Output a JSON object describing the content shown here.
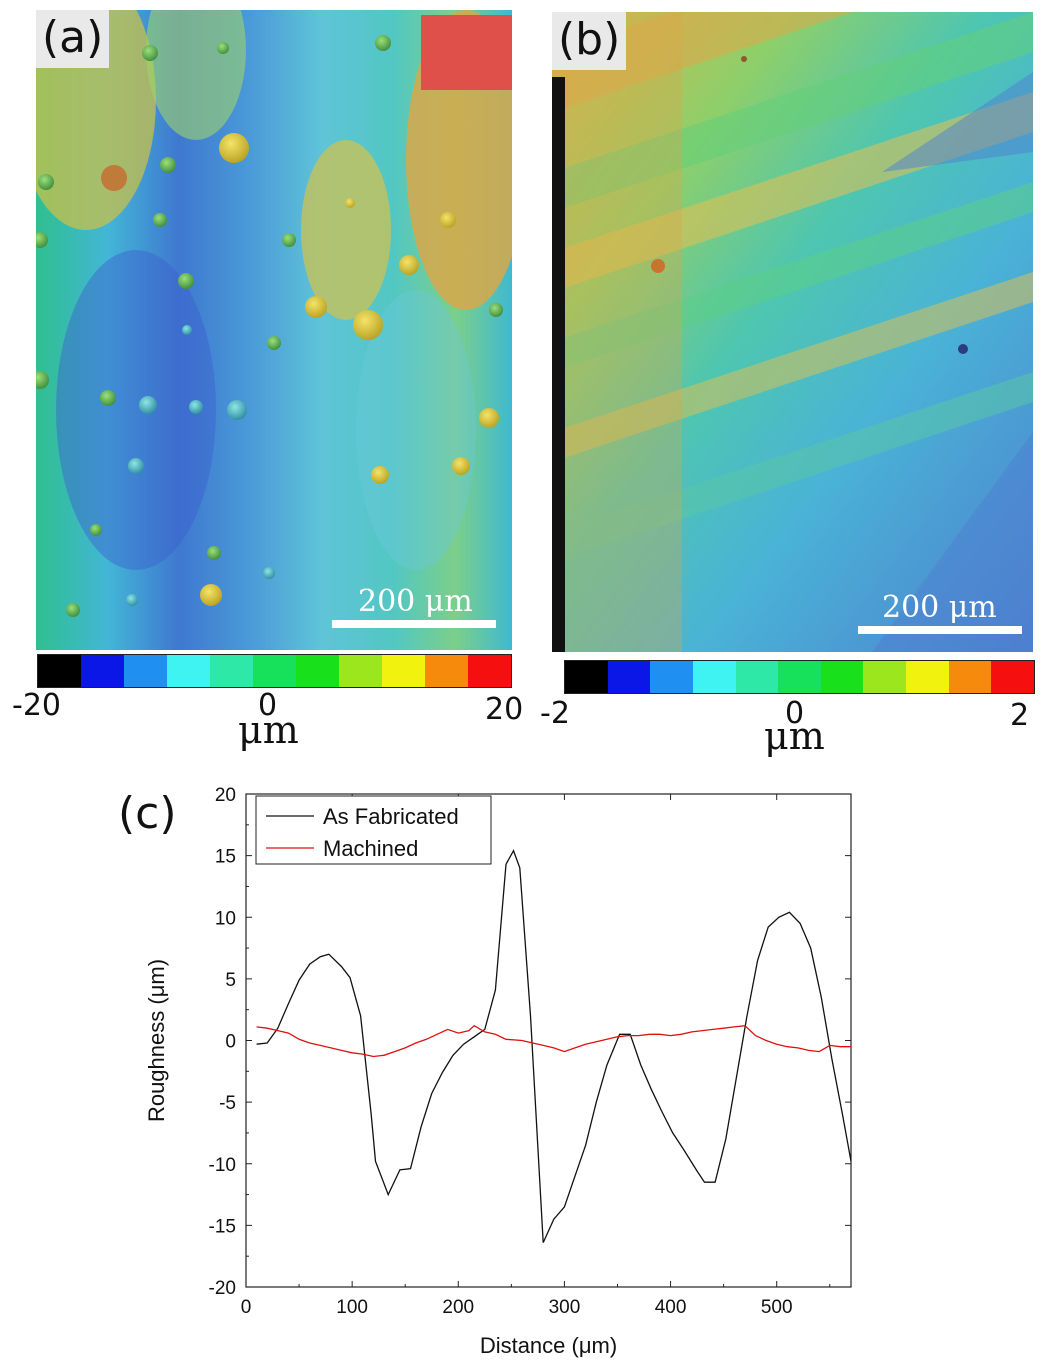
{
  "panel_a": {
    "tag": "(a)",
    "scalebar_label": "200 μm",
    "colorbar": {
      "min_label": "-20",
      "mid_label": "0",
      "max_label": "20",
      "unit": "μm",
      "colors": [
        "#000000",
        "#0b17e6",
        "#1f8ff2",
        "#3ef3f2",
        "#2ee8a8",
        "#17e05a",
        "#18e01a",
        "#9be61c",
        "#f2f20f",
        "#f58a0c",
        "#f50f0f"
      ]
    }
  },
  "panel_b": {
    "tag": "(b)",
    "scalebar_label": "200 μm",
    "colorbar": {
      "min_label": "-2",
      "mid_label": "0",
      "max_label": "2",
      "unit": "μm",
      "colors": [
        "#000000",
        "#0b17e6",
        "#1f8ff2",
        "#3ef3f2",
        "#2ee8a8",
        "#17e05a",
        "#18e01a",
        "#9be61c",
        "#f2f20f",
        "#f58a0c",
        "#f50f0f"
      ]
    }
  },
  "chart_data": {
    "type": "line",
    "panel_tag": "(c)",
    "xlabel": "Distance (μm)",
    "ylabel": "Roughness (μm)",
    "xlim": [
      0,
      570
    ],
    "ylim": [
      -20,
      20
    ],
    "xticks": [
      0,
      100,
      200,
      300,
      400,
      500
    ],
    "yticks": [
      -20,
      -15,
      -10,
      -5,
      0,
      5,
      10,
      15,
      20
    ],
    "legend_position": "top-left",
    "series": [
      {
        "name": "As Fabricated",
        "color": "#111111",
        "x": [
          10,
          20,
          30,
          40,
          50,
          60,
          70,
          78,
          90,
          98,
          108,
          118,
          122,
          134,
          145,
          155,
          165,
          175,
          185,
          195,
          205,
          215,
          225,
          235,
          245,
          252,
          258,
          268,
          280,
          290,
          300,
          310,
          320,
          330,
          340,
          352,
          362,
          372,
          382,
          392,
          402,
          412,
          425,
          432,
          442,
          452,
          462,
          472,
          482,
          492,
          502,
          512,
          522,
          532,
          542,
          552,
          562,
          570
        ],
        "y": [
          -0.3,
          -0.2,
          1.0,
          3.0,
          4.9,
          6.2,
          6.8,
          7.0,
          6.0,
          5.1,
          2.0,
          -6.0,
          -9.8,
          -12.5,
          -10.5,
          -10.4,
          -7.0,
          -4.3,
          -2.6,
          -1.2,
          -0.3,
          0.3,
          0.9,
          4.1,
          14.3,
          15.4,
          14.0,
          2.0,
          -16.4,
          -14.5,
          -13.5,
          -11.0,
          -8.5,
          -5.0,
          -2.0,
          0.5,
          0.5,
          -2.0,
          -4.0,
          -5.8,
          -7.5,
          -8.8,
          -10.6,
          -11.5,
          -11.5,
          -8.0,
          -3.0,
          2.0,
          6.5,
          9.2,
          10.0,
          10.4,
          9.5,
          7.5,
          3.5,
          -1.5,
          -6.0,
          -9.8
        ]
      },
      {
        "name": "Machined",
        "color": "#e01010",
        "x": [
          10,
          20,
          30,
          40,
          50,
          60,
          70,
          80,
          90,
          100,
          110,
          120,
          130,
          140,
          150,
          160,
          170,
          180,
          190,
          200,
          210,
          215,
          225,
          235,
          245,
          260,
          270,
          280,
          290,
          300,
          310,
          320,
          330,
          340,
          350,
          360,
          370,
          380,
          390,
          400,
          410,
          420,
          430,
          440,
          450,
          460,
          470,
          480,
          490,
          500,
          510,
          520,
          530,
          540,
          550,
          560,
          570
        ],
        "y": [
          1.1,
          1.0,
          0.8,
          0.6,
          0.1,
          -0.2,
          -0.4,
          -0.6,
          -0.8,
          -1.0,
          -1.1,
          -1.3,
          -1.2,
          -0.9,
          -0.6,
          -0.2,
          0.1,
          0.5,
          0.9,
          0.6,
          0.8,
          1.2,
          0.7,
          0.5,
          0.1,
          0.0,
          -0.2,
          -0.4,
          -0.6,
          -0.9,
          -0.6,
          -0.3,
          -0.1,
          0.1,
          0.3,
          0.4,
          0.4,
          0.5,
          0.5,
          0.4,
          0.5,
          0.7,
          0.8,
          0.9,
          1.0,
          1.1,
          1.2,
          0.4,
          0.0,
          -0.3,
          -0.5,
          -0.6,
          -0.8,
          -0.9,
          -0.4,
          -0.5,
          -0.5
        ]
      }
    ]
  }
}
